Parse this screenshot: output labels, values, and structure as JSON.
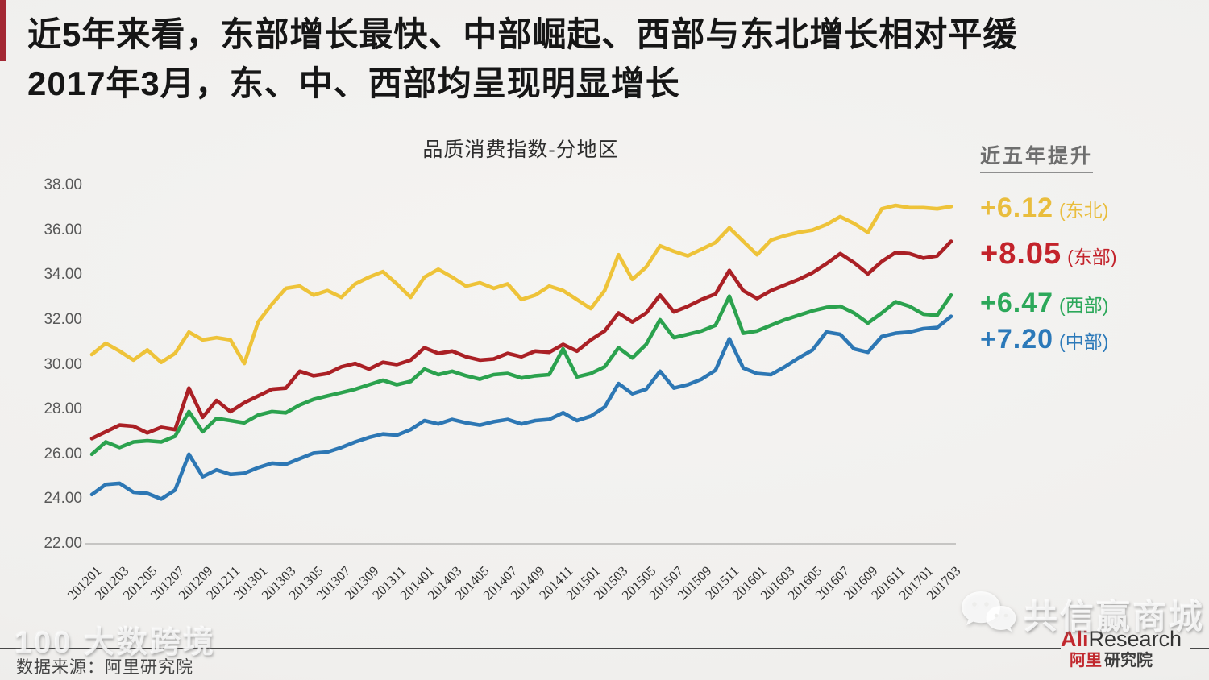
{
  "page": {
    "title_line1": "近5年来看，东部增长最快、中部崛起、西部与东北增长相对平缓",
    "title_line2": "2017年3月，东、中、西部均呈现明显增长",
    "source_note": "数据来源：阿里研究院",
    "watermark_left": "100 大数跨境",
    "watermark_right": "共信赢商城",
    "logo": {
      "en_red": "Ali",
      "en_dark": "Research",
      "cn_red": "阿里",
      "cn_dark": "研究院"
    }
  },
  "legend": {
    "heading": "近五年提升",
    "items": [
      {
        "key": "northeast",
        "delta": "+6.12",
        "label": "(东北)",
        "color": "#e9bd3d",
        "emphasis": false
      },
      {
        "key": "east",
        "delta": "+8.05",
        "label": "(东部)",
        "color": "#c3232b",
        "emphasis": true
      },
      {
        "key": "west",
        "delta": "+6.47",
        "label": "(西部)",
        "color": "#2ca85a",
        "emphasis": false
      },
      {
        "key": "central",
        "delta": "+7.20",
        "label": "(中部)",
        "color": "#2b79b9",
        "emphasis": false
      }
    ]
  },
  "chart_data": {
    "type": "line",
    "title": "品质消费指数-分地区",
    "ylabel": "",
    "xlabel": "",
    "ylim": [
      22,
      38
    ],
    "grid": false,
    "legend_position": "right",
    "y_ticks": [
      "38.00",
      "36.00",
      "34.00",
      "32.00",
      "30.00",
      "28.00",
      "26.00",
      "24.00",
      "22.00"
    ],
    "x": [
      "201201",
      "201202",
      "201203",
      "201204",
      "201205",
      "201206",
      "201207",
      "201208",
      "201209",
      "201210",
      "201211",
      "201212",
      "201301",
      "201302",
      "201303",
      "201304",
      "201305",
      "201306",
      "201307",
      "201308",
      "201309",
      "201310",
      "201311",
      "201312",
      "201401",
      "201402",
      "201403",
      "201404",
      "201405",
      "201406",
      "201407",
      "201408",
      "201409",
      "201410",
      "201411",
      "201412",
      "201501",
      "201502",
      "201503",
      "201504",
      "201505",
      "201506",
      "201507",
      "201508",
      "201509",
      "201510",
      "201511",
      "201512",
      "201601",
      "201602",
      "201603",
      "201604",
      "201605",
      "201606",
      "201607",
      "201608",
      "201609",
      "201610",
      "201611",
      "201612",
      "201701",
      "201702",
      "201703"
    ],
    "x_tick_labels": [
      "201201",
      "201203",
      "201205",
      "201207",
      "201209",
      "201211",
      "201301",
      "201303",
      "201305",
      "201307",
      "201309",
      "201311",
      "201401",
      "201403",
      "201405",
      "201407",
      "201409",
      "201411",
      "201501",
      "201503",
      "201505",
      "201507",
      "201509",
      "201511",
      "201601",
      "201603",
      "201605",
      "201607",
      "201609",
      "201611",
      "201701",
      "201703"
    ],
    "series": [
      {
        "key": "northeast",
        "name": "东北",
        "color": "#eec339",
        "values": [
          30.45,
          30.95,
          30.6,
          30.2,
          30.65,
          30.1,
          30.5,
          31.45,
          31.1,
          31.2,
          31.1,
          30.05,
          31.9,
          32.7,
          33.4,
          33.5,
          33.1,
          33.3,
          33.0,
          33.6,
          33.9,
          34.15,
          33.6,
          33.0,
          33.9,
          34.25,
          33.9,
          33.5,
          33.65,
          33.4,
          33.6,
          32.9,
          33.1,
          33.5,
          33.3,
          32.9,
          32.5,
          33.3,
          34.9,
          33.8,
          34.35,
          35.3,
          35.05,
          34.85,
          35.15,
          35.45,
          36.1,
          35.5,
          34.9,
          35.55,
          35.75,
          35.9,
          36.0,
          36.25,
          36.6,
          36.3,
          35.9,
          36.95,
          37.1,
          37.0,
          37.0,
          36.95,
          37.05
        ]
      },
      {
        "key": "east",
        "name": "东部",
        "color": "#aa2025",
        "values": [
          26.7,
          27.0,
          27.3,
          27.25,
          26.95,
          27.2,
          27.1,
          28.95,
          27.65,
          28.4,
          27.9,
          28.3,
          28.6,
          28.9,
          28.95,
          29.7,
          29.5,
          29.6,
          29.9,
          30.05,
          29.8,
          30.1,
          30.0,
          30.2,
          30.75,
          30.5,
          30.6,
          30.35,
          30.2,
          30.25,
          30.5,
          30.35,
          30.6,
          30.55,
          30.9,
          30.6,
          31.1,
          31.5,
          32.3,
          31.9,
          32.3,
          33.1,
          32.35,
          32.6,
          32.9,
          33.15,
          34.2,
          33.3,
          32.95,
          33.3,
          33.55,
          33.8,
          34.1,
          34.5,
          34.95,
          34.55,
          34.05,
          34.6,
          35.0,
          34.95,
          34.75,
          34.85,
          35.5
        ]
      },
      {
        "key": "west",
        "name": "西部",
        "color": "#2ba24e",
        "values": [
          26.0,
          26.55,
          26.3,
          26.55,
          26.6,
          26.55,
          26.8,
          27.9,
          27.0,
          27.6,
          27.5,
          27.4,
          27.75,
          27.9,
          27.85,
          28.2,
          28.45,
          28.6,
          28.75,
          28.9,
          29.1,
          29.3,
          29.1,
          29.25,
          29.8,
          29.55,
          29.7,
          29.5,
          29.35,
          29.55,
          29.6,
          29.4,
          29.5,
          29.55,
          30.7,
          29.45,
          29.6,
          29.9,
          30.75,
          30.3,
          30.9,
          32.0,
          31.2,
          31.35,
          31.5,
          31.75,
          33.05,
          31.4,
          31.5,
          31.75,
          32.0,
          32.2,
          32.4,
          32.55,
          32.6,
          32.3,
          31.85,
          32.3,
          32.8,
          32.6,
          32.25,
          32.2,
          33.1
        ]
      },
      {
        "key": "central",
        "name": "中部",
        "color": "#2d77b4",
        "values": [
          24.2,
          24.65,
          24.7,
          24.3,
          24.25,
          24.0,
          24.4,
          26.0,
          25.0,
          25.3,
          25.1,
          25.15,
          25.4,
          25.6,
          25.55,
          25.8,
          26.05,
          26.1,
          26.3,
          26.55,
          26.75,
          26.9,
          26.85,
          27.1,
          27.5,
          27.35,
          27.55,
          27.4,
          27.3,
          27.45,
          27.55,
          27.35,
          27.5,
          27.55,
          27.85,
          27.5,
          27.7,
          28.1,
          29.15,
          28.7,
          28.9,
          29.7,
          28.95,
          29.1,
          29.35,
          29.75,
          31.15,
          29.85,
          29.6,
          29.55,
          29.9,
          30.3,
          30.65,
          31.45,
          31.35,
          30.7,
          30.55,
          31.25,
          31.4,
          31.45,
          31.6,
          31.65,
          32.15
        ]
      }
    ]
  }
}
